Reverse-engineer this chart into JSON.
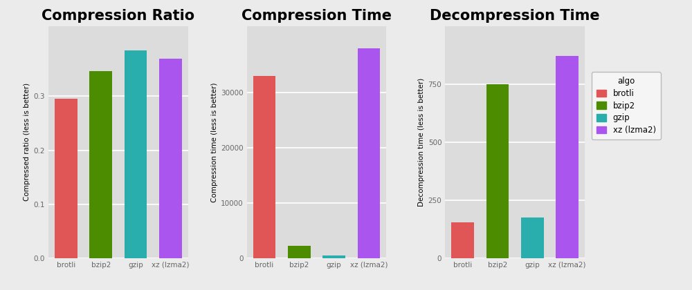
{
  "categories": [
    "brotli",
    "bzip2",
    "gzip",
    "xz (lzma2)"
  ],
  "colors": {
    "brotli": "#E05555",
    "bzip2": "#4C8C00",
    "gzip": "#2AADAD",
    "xz (lzma2)": "#AA55EE"
  },
  "compression_ratio": {
    "title": "Compression Ratio",
    "ylabel": "Compressed ratio (less is better)",
    "values": [
      0.296,
      0.346,
      0.385,
      0.37
    ],
    "ylim": [
      0,
      0.43
    ],
    "yticks": [
      0.0,
      0.1,
      0.2,
      0.3
    ]
  },
  "compression_time": {
    "title": "Compression Time",
    "ylabel": "Compression time (less is better)",
    "values": [
      33000,
      2200,
      500,
      38000
    ],
    "ylim": [
      0,
      42000
    ],
    "yticks": [
      0,
      10000,
      20000,
      30000
    ]
  },
  "decompression_time": {
    "title": "Decompression Time",
    "ylabel": "Decompression time (less is better)",
    "values": [
      155,
      750,
      175,
      870
    ],
    "ylim": [
      0,
      1000
    ],
    "yticks": [
      0,
      250,
      500,
      750
    ]
  },
  "background_color": "#DCDCDC",
  "fig_background": "#EBEBEB",
  "title_fontsize": 15,
  "label_fontsize": 7.5,
  "tick_fontsize": 7.5
}
